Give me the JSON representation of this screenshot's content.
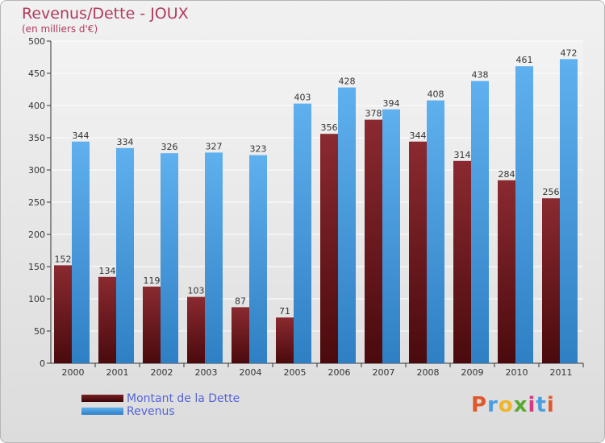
{
  "chart_data": {
    "type": "bar",
    "title": "Revenus/Dette - JOUX",
    "subtitle": "(en milliers d'€)",
    "categories": [
      "2000",
      "2001",
      "2002",
      "2003",
      "2004",
      "2005",
      "2006",
      "2007",
      "2008",
      "2009",
      "2010",
      "2011"
    ],
    "series": [
      {
        "name": "Montant de la Dette",
        "values": [
          152,
          134,
          119,
          103,
          87,
          71,
          356,
          378,
          344,
          314,
          284,
          256
        ],
        "color": "#7a1f24"
      },
      {
        "name": "Revenus",
        "values": [
          344,
          334,
          326,
          327,
          323,
          403,
          428,
          394,
          408,
          438,
          461,
          472
        ],
        "color": "#4a9ee0"
      }
    ],
    "ylim": [
      0,
      500
    ],
    "yticks": [
      0,
      50,
      100,
      150,
      200,
      250,
      300,
      350,
      400,
      450,
      500
    ],
    "grid": true,
    "legend_position": "bottom-left"
  },
  "logo": {
    "text": "Proxiti",
    "colors": [
      "#e0582a",
      "#4a9ee0",
      "#f0b429",
      "#5aa832",
      "#d63a7c",
      "#4a9ee0",
      "#e0582a"
    ]
  }
}
